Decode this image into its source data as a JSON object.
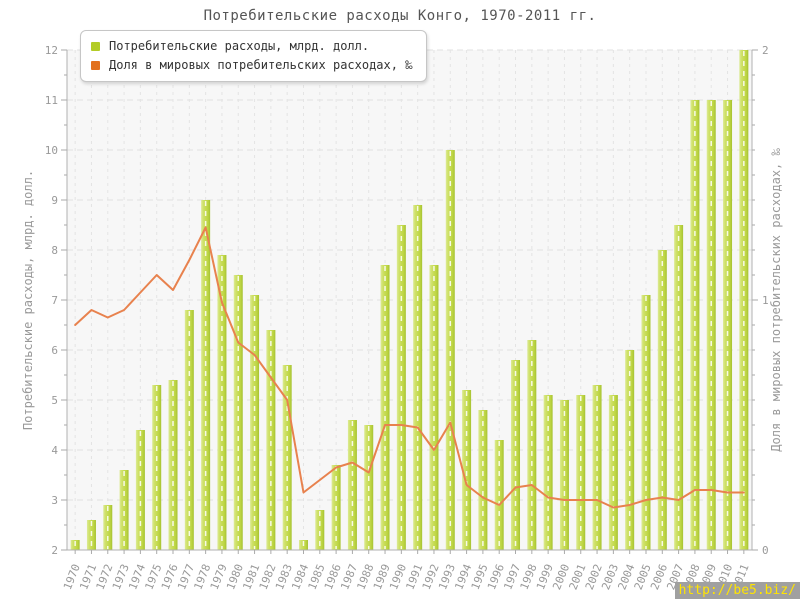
{
  "watermark": {
    "text": "http://be5.biz/"
  },
  "chart_data": {
    "type": "bar",
    "title": "Потребительские расходы Конго, 1970-2011 гг.",
    "categories": [
      "1970",
      "1971",
      "1972",
      "1973",
      "1974",
      "1975",
      "1976",
      "1977",
      "1978",
      "1979",
      "1980",
      "1981",
      "1982",
      "1983",
      "1984",
      "1985",
      "1986",
      "1987",
      "1988",
      "1989",
      "1990",
      "1991",
      "1992",
      "1993",
      "1994",
      "1995",
      "1996",
      "1997",
      "1998",
      "1999",
      "2000",
      "2001",
      "2002",
      "2003",
      "2004",
      "2005",
      "2006",
      "2007",
      "2008",
      "2009",
      "2010",
      "2011"
    ],
    "series": [
      {
        "name": "Потребительские расходы, млрд. долл.",
        "type": "bar",
        "axis": "left",
        "color": "#c3d94b",
        "legend_color": "#b3cc26",
        "values": [
          2.2,
          2.6,
          2.9,
          3.6,
          4.4,
          5.3,
          5.4,
          6.8,
          9.0,
          7.9,
          7.5,
          7.1,
          6.4,
          5.7,
          2.2,
          2.8,
          3.7,
          4.6,
          4.5,
          7.7,
          8.5,
          8.9,
          7.7,
          10.0,
          5.2,
          4.8,
          4.2,
          5.8,
          6.2,
          5.1,
          5.0,
          5.1,
          5.3,
          5.1,
          6.0,
          7.1,
          8.0,
          8.5,
          11.0,
          11.0,
          11.0,
          12.0
        ]
      },
      {
        "name": "Доля в мировых потребительских расходах, ‰",
        "type": "line",
        "axis": "right",
        "color": "#e8824e",
        "legend_color": "#e2711d",
        "values": [
          0.9,
          0.96,
          0.93,
          0.96,
          1.03,
          1.1,
          1.04,
          1.16,
          1.29,
          0.99,
          0.83,
          0.78,
          0.69,
          0.6,
          0.23,
          0.28,
          0.33,
          0.35,
          0.31,
          0.5,
          0.5,
          0.49,
          0.4,
          0.51,
          0.26,
          0.21,
          0.18,
          0.25,
          0.26,
          0.21,
          0.2,
          0.2,
          0.2,
          0.17,
          0.18,
          0.2,
          0.21,
          0.2,
          0.24,
          0.24,
          0.23,
          0.23
        ]
      }
    ],
    "ylabel_left": "Потребительские расходы, млрд. долл.",
    "ylabel_right": "Доля в мировых потребительских расходах, ‰",
    "ylim_left": [
      2,
      12
    ],
    "ytick_step_left": 1,
    "ylim_right": [
      0,
      2
    ],
    "ytick_step_right": 1,
    "grid": true,
    "legend_position": "top-left"
  }
}
